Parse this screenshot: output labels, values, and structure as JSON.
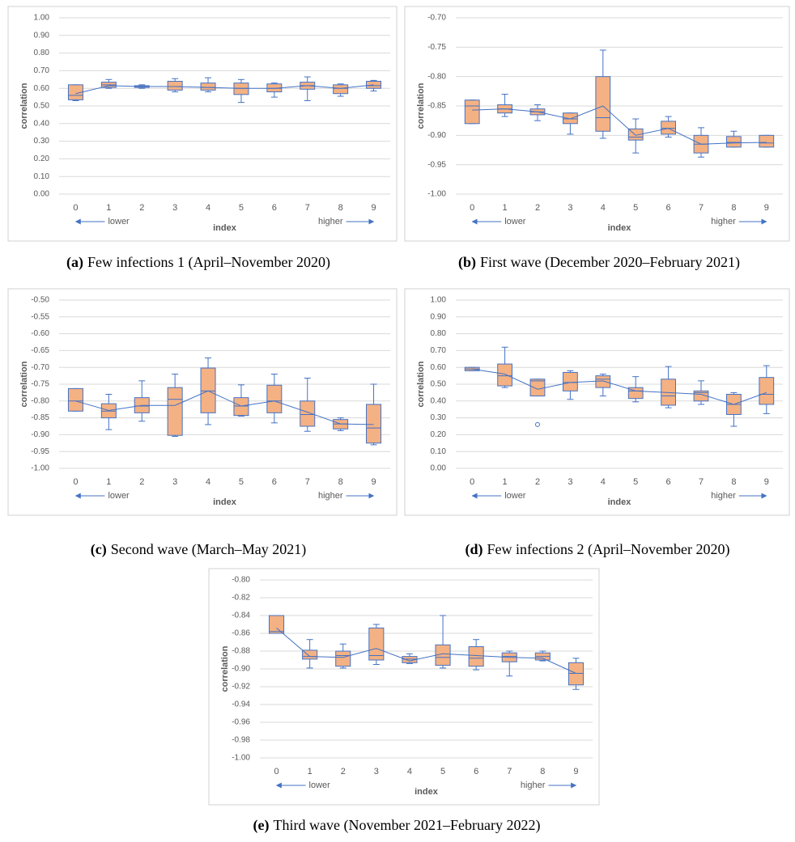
{
  "chart_data": [
    {
      "type": "box",
      "caption_label": "(a)",
      "caption": "Few infections 1 (April–November 2020)",
      "y_label": "correlation",
      "x_label": "index",
      "left_note": "lower",
      "right_note": "higher",
      "categories": [
        "0",
        "1",
        "2",
        "3",
        "4",
        "5",
        "6",
        "7",
        "8",
        "9"
      ],
      "min": [
        0.53,
        0.6,
        0.6,
        0.58,
        0.58,
        0.52,
        0.55,
        0.53,
        0.555,
        0.585
      ],
      "q1": [
        0.535,
        0.605,
        0.605,
        0.59,
        0.59,
        0.565,
        0.58,
        0.595,
        0.57,
        0.6
      ],
      "median": [
        0.56,
        0.62,
        0.61,
        0.61,
        0.605,
        0.6,
        0.6,
        0.615,
        0.6,
        0.615
      ],
      "q3": [
        0.62,
        0.635,
        0.615,
        0.64,
        0.63,
        0.63,
        0.625,
        0.635,
        0.62,
        0.64
      ],
      "max": [
        0.62,
        0.65,
        0.62,
        0.655,
        0.66,
        0.65,
        0.63,
        0.665,
        0.625,
        0.645
      ],
      "mean": [
        0.57,
        0.615,
        0.61,
        0.61,
        0.605,
        0.6,
        0.6,
        0.615,
        0.6,
        0.62
      ],
      "ylim": [
        0,
        1
      ],
      "yticks": [
        {
          "value": 0,
          "label": "0.00"
        },
        {
          "value": 0.1,
          "label": "0.10"
        },
        {
          "value": 0.2,
          "label": "0.20"
        },
        {
          "value": 0.3,
          "label": "0.30"
        },
        {
          "value": 0.4,
          "label": "0.40"
        },
        {
          "value": 0.5,
          "label": "0.50"
        },
        {
          "value": 0.6,
          "label": "0.60"
        },
        {
          "value": 0.7,
          "label": "0.70"
        },
        {
          "value": 0.8,
          "label": "0.80"
        },
        {
          "value": 0.9,
          "label": "0.90"
        },
        {
          "value": 1,
          "label": "1.00"
        }
      ],
      "box_color": "#f4b183",
      "line_color": "#4472c4",
      "grid": true
    },
    {
      "type": "box",
      "caption_label": "(b)",
      "caption": "First wave (December 2020–February 2021)",
      "y_label": "correlation",
      "x_label": "index",
      "left_note": "lower",
      "right_note": "higher",
      "categories": [
        "0",
        "1",
        "2",
        "3",
        "4",
        "5",
        "6",
        "7",
        "8",
        "9"
      ],
      "min": [
        -0.88,
        -0.868,
        -0.875,
        -0.898,
        -0.905,
        -0.93,
        -0.903,
        -0.937,
        -0.92,
        -0.92
      ],
      "q1": [
        -0.88,
        -0.862,
        -0.865,
        -0.88,
        -0.893,
        -0.908,
        -0.898,
        -0.93,
        -0.92,
        -0.92
      ],
      "median": [
        -0.85,
        -0.855,
        -0.86,
        -0.872,
        -0.87,
        -0.903,
        -0.888,
        -0.915,
        -0.912,
        -0.913
      ],
      "q3": [
        -0.84,
        -0.848,
        -0.855,
        -0.862,
        -0.8,
        -0.889,
        -0.876,
        -0.9,
        -0.902,
        -0.9
      ],
      "max": [
        -0.84,
        -0.83,
        -0.848,
        -0.862,
        -0.755,
        -0.872,
        -0.868,
        -0.887,
        -0.893,
        -0.9
      ],
      "mean": [
        -0.857,
        -0.855,
        -0.86,
        -0.872,
        -0.85,
        -0.9,
        -0.888,
        -0.915,
        -0.913,
        -0.912
      ],
      "ylim": [
        -1,
        -0.7
      ],
      "yticks": [
        {
          "value": -1,
          "label": "-1.00"
        },
        {
          "value": -0.95,
          "label": "-0.95"
        },
        {
          "value": -0.9,
          "label": "-0.90"
        },
        {
          "value": -0.85,
          "label": "-0.85"
        },
        {
          "value": -0.8,
          "label": "-0.80"
        },
        {
          "value": -0.75,
          "label": "-0.75"
        },
        {
          "value": -0.7,
          "label": "-0.70"
        }
      ],
      "box_color": "#f4b183",
      "line_color": "#4472c4",
      "grid": true
    },
    {
      "type": "box",
      "caption_label": "(c)",
      "caption": "Second wave (March–May 2021)",
      "y_label": "correlation",
      "x_label": "index",
      "left_note": "lower",
      "right_note": "higher",
      "categories": [
        "0",
        "1",
        "2",
        "3",
        "4",
        "5",
        "6",
        "7",
        "8",
        "9"
      ],
      "min": [
        -0.83,
        -0.885,
        -0.86,
        -0.905,
        -0.87,
        -0.845,
        -0.865,
        -0.89,
        -0.888,
        -0.93
      ],
      "q1": [
        -0.83,
        -0.85,
        -0.835,
        -0.902,
        -0.835,
        -0.843,
        -0.835,
        -0.875,
        -0.883,
        -0.925
      ],
      "median": [
        -0.8,
        -0.83,
        -0.815,
        -0.795,
        -0.77,
        -0.815,
        -0.8,
        -0.84,
        -0.868,
        -0.88
      ],
      "q3": [
        -0.763,
        -0.808,
        -0.79,
        -0.76,
        -0.702,
        -0.79,
        -0.753,
        -0.8,
        -0.855,
        -0.81
      ],
      "max": [
        -0.763,
        -0.78,
        -0.74,
        -0.72,
        -0.672,
        -0.752,
        -0.72,
        -0.732,
        -0.85,
        -0.75
      ],
      "mean": [
        -0.8,
        -0.828,
        -0.813,
        -0.813,
        -0.77,
        -0.815,
        -0.8,
        -0.833,
        -0.868,
        -0.87
      ],
      "ylim": [
        -1,
        -0.5
      ],
      "yticks": [
        {
          "value": -1,
          "label": "-1.00"
        },
        {
          "value": -0.95,
          "label": "-0.95"
        },
        {
          "value": -0.9,
          "label": "-0.90"
        },
        {
          "value": -0.85,
          "label": "-0.85"
        },
        {
          "value": -0.8,
          "label": "-0.80"
        },
        {
          "value": -0.75,
          "label": "-0.75"
        },
        {
          "value": -0.7,
          "label": "-0.70"
        },
        {
          "value": -0.65,
          "label": "-0.65"
        },
        {
          "value": -0.6,
          "label": "-0.60"
        },
        {
          "value": -0.55,
          "label": "-0.55"
        },
        {
          "value": -0.5,
          "label": "-0.50"
        }
      ],
      "box_color": "#f4b183",
      "line_color": "#4472c4",
      "grid": true
    },
    {
      "type": "box",
      "caption_label": "(d)",
      "caption": "Few infections 2 (April–November 2020)",
      "y_label": "correlation",
      "x_label": "index",
      "left_note": "lower",
      "right_note": "higher",
      "categories": [
        "0",
        "1",
        "2",
        "3",
        "4",
        "5",
        "6",
        "7",
        "8",
        "9"
      ],
      "min": [
        0.58,
        0.48,
        0.43,
        0.41,
        0.43,
        0.395,
        0.36,
        0.38,
        0.25,
        0.325
      ],
      "q1": [
        0.58,
        0.49,
        0.43,
        0.46,
        0.48,
        0.415,
        0.375,
        0.4,
        0.32,
        0.38
      ],
      "median": [
        0.59,
        0.55,
        0.52,
        0.51,
        0.53,
        0.46,
        0.43,
        0.45,
        0.38,
        0.44
      ],
      "q3": [
        0.6,
        0.62,
        0.53,
        0.57,
        0.55,
        0.48,
        0.53,
        0.46,
        0.44,
        0.54
      ],
      "max": [
        0.6,
        0.72,
        0.53,
        0.58,
        0.56,
        0.545,
        0.605,
        0.52,
        0.45,
        0.61
      ],
      "mean": [
        0.59,
        0.56,
        0.47,
        0.51,
        0.52,
        0.46,
        0.45,
        0.44,
        0.38,
        0.45
      ],
      "outliers": [
        null,
        null,
        0.26,
        null,
        null,
        null,
        null,
        null,
        null,
        null
      ],
      "ylim": [
        0,
        1
      ],
      "yticks": [
        {
          "value": 0,
          "label": "0.00"
        },
        {
          "value": 0.1,
          "label": "0.10"
        },
        {
          "value": 0.2,
          "label": "0.20"
        },
        {
          "value": 0.3,
          "label": "0.30"
        },
        {
          "value": 0.4,
          "label": "0.40"
        },
        {
          "value": 0.5,
          "label": "0.50"
        },
        {
          "value": 0.6,
          "label": "0.60"
        },
        {
          "value": 0.7,
          "label": "0.70"
        },
        {
          "value": 0.8,
          "label": "0.80"
        },
        {
          "value": 0.9,
          "label": "0.90"
        },
        {
          "value": 1,
          "label": "1.00"
        }
      ],
      "box_color": "#f4b183",
      "line_color": "#4472c4",
      "grid": true
    },
    {
      "type": "box",
      "caption_label": "(e)",
      "caption": "Third wave (November 2021–February 2022)",
      "y_label": "correlation",
      "x_label": "index",
      "left_note": "lower",
      "right_note": "higher",
      "categories": [
        "0",
        "1",
        "2",
        "3",
        "4",
        "5",
        "6",
        "7",
        "8",
        "9"
      ],
      "min": [
        -0.86,
        -0.899,
        -0.899,
        -0.895,
        -0.894,
        -0.899,
        -0.901,
        -0.908,
        -0.891,
        -0.923
      ],
      "q1": [
        -0.86,
        -0.889,
        -0.897,
        -0.89,
        -0.893,
        -0.896,
        -0.897,
        -0.892,
        -0.89,
        -0.918
      ],
      "median": [
        -0.858,
        -0.886,
        -0.885,
        -0.885,
        -0.889,
        -0.887,
        -0.888,
        -0.886,
        -0.886,
        -0.905
      ],
      "q3": [
        -0.84,
        -0.879,
        -0.88,
        -0.854,
        -0.886,
        -0.873,
        -0.875,
        -0.882,
        -0.882,
        -0.893
      ],
      "max": [
        -0.84,
        -0.867,
        -0.872,
        -0.85,
        -0.883,
        -0.84,
        -0.867,
        -0.88,
        -0.88,
        -0.888
      ],
      "mean": [
        -0.854,
        -0.886,
        -0.887,
        -0.877,
        -0.891,
        -0.883,
        -0.885,
        -0.887,
        -0.888,
        -0.905
      ],
      "ylim": [
        -1,
        -0.8
      ],
      "yticks": [
        {
          "value": -1,
          "label": "-1.00"
        },
        {
          "value": -0.98,
          "label": "-0.98"
        },
        {
          "value": -0.96,
          "label": "-0.96"
        },
        {
          "value": -0.94,
          "label": "-0.94"
        },
        {
          "value": -0.92,
          "label": "-0.92"
        },
        {
          "value": -0.9,
          "label": "-0.90"
        },
        {
          "value": -0.88,
          "label": "-0.88"
        },
        {
          "value": -0.86,
          "label": "-0.86"
        },
        {
          "value": -0.84,
          "label": "-0.84"
        },
        {
          "value": -0.82,
          "label": "-0.82"
        },
        {
          "value": -0.8,
          "label": "-0.80"
        }
      ],
      "box_color": "#f4b183",
      "line_color": "#4472c4",
      "grid": true
    }
  ]
}
